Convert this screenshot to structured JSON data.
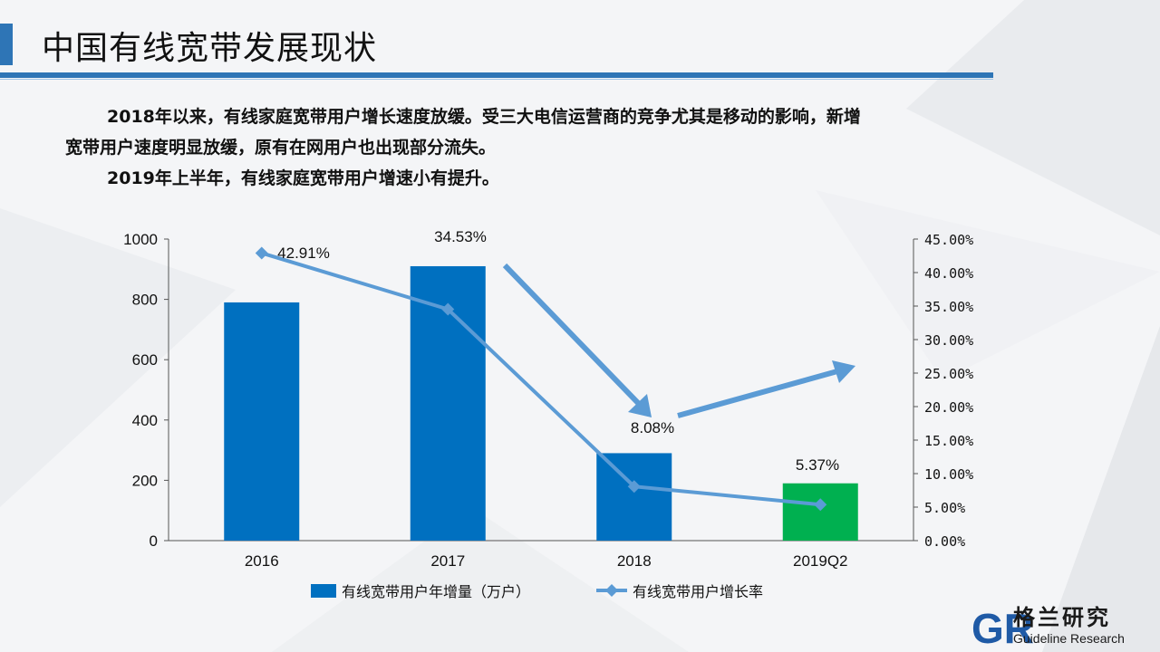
{
  "header": {
    "title": "中国有线宽带发展现状",
    "para1": "2018年以来，有线家庭宽带用户增长速度放缓。受三大电信运营商的竞争尤其是移动的影响，新增",
    "para1_cont": "宽带用户速度明显放缓，原有在网用户也出现部分流失。",
    "para2": "2019年上半年，有线家庭宽带用户增速小有提升。"
  },
  "logo": {
    "cn": "格兰研究",
    "en": "Guideline Research",
    "letters": "GR"
  },
  "colors": {
    "accent": "#2e75b6",
    "bar": "#0070c0",
    "bar_highlight": "#00b050",
    "line": "#5b9bd5"
  },
  "chart_data": {
    "type": "bar",
    "categories": [
      "2016",
      "2017",
      "2018",
      "2019Q2"
    ],
    "series": [
      {
        "name": "有线宽带用户年增量（万户）",
        "type": "bar",
        "axis": "left",
        "values": [
          790,
          910,
          290,
          190
        ]
      },
      {
        "name": "有线宽带用户增长率",
        "type": "line",
        "axis": "right",
        "values": [
          42.91,
          34.53,
          8.08,
          5.37
        ],
        "labels": [
          "42.91%",
          "34.53%",
          "8.08%",
          "5.37%"
        ]
      }
    ],
    "left_axis": {
      "ylim": [
        0,
        1000
      ],
      "ticks": [
        "0",
        "200",
        "400",
        "600",
        "800",
        "1000"
      ]
    },
    "right_axis": {
      "ylim": [
        0,
        45
      ],
      "ticks": [
        "0.00%",
        "5.00%",
        "10.00%",
        "15.00%",
        "20.00%",
        "25.00%",
        "30.00%",
        "35.00%",
        "40.00%",
        "45.00%"
      ]
    },
    "grid": false,
    "legend": "bottom",
    "annotations": [
      "downward-trend-arrow",
      "upward-trend-arrow"
    ]
  }
}
